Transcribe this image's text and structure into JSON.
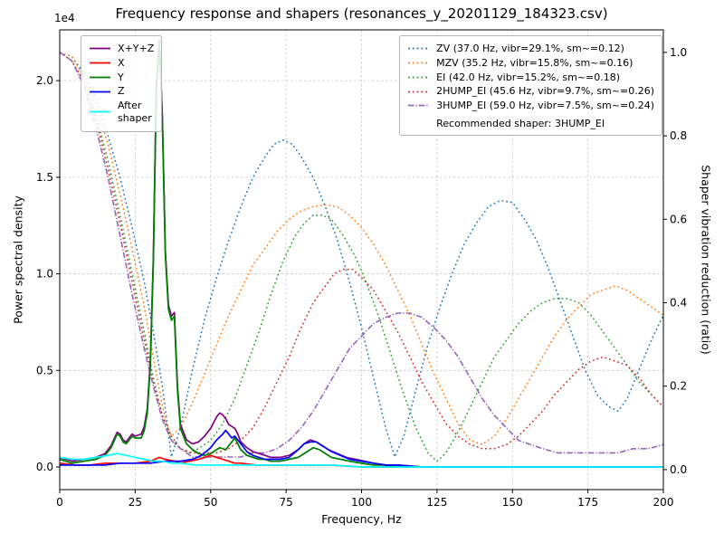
{
  "chart_data": {
    "type": "line",
    "title": "Frequency response and shapers (resonances_y_20201129_184323.csv)",
    "xlabel": "Frequency, Hz",
    "ylabel": "Power spectral density",
    "ylabel_right": "Shaper vibration reduction (ratio)",
    "offset_text": "1e4",
    "recommended_note": "Recommended shaper: 3HUMP_EI",
    "xlim": [
      0,
      200
    ],
    "ylim_left": [
      -0.117,
      2.263
    ],
    "ylim_right": [
      -0.048,
      1.054
    ],
    "x_ticks": [
      0,
      25,
      50,
      75,
      100,
      125,
      150,
      175,
      200
    ],
    "x_tick_labels": [
      "0",
      "25",
      "50",
      "75",
      "100",
      "125",
      "150",
      "175",
      "200"
    ],
    "yl_ticks": [
      0,
      0.5,
      1.0,
      1.5,
      2.0
    ],
    "yl_tick_labels": [
      "0.0",
      "0.5",
      "1.0",
      "1.5",
      "2.0"
    ],
    "yr_ticks": [
      0,
      0.2,
      0.4,
      0.6,
      0.8,
      1.0
    ],
    "yr_tick_labels": [
      "0.0",
      "0.2",
      "0.4",
      "0.6",
      "0.8",
      "1.0"
    ],
    "grid": true,
    "legend_left_position": "upper left",
    "legend_right_position": "upper right",
    "series": [
      {
        "id": "xyz",
        "name": "X+Y+Z",
        "label": "X+Y+Z",
        "axis": "left",
        "color": "#800080",
        "style": "solid",
        "width": 1.7,
        "x": [
          0,
          4,
          8,
          12,
          15,
          17,
          19,
          20,
          21,
          22,
          24,
          25,
          27,
          28,
          29,
          30,
          31,
          32,
          33,
          34,
          35,
          36,
          37,
          38,
          39,
          40,
          42,
          44,
          46,
          48,
          50,
          51,
          52,
          53,
          54,
          55,
          56,
          57,
          58,
          59,
          60,
          62,
          64,
          66,
          68,
          70,
          73,
          76,
          79,
          81,
          83,
          85,
          87,
          89,
          92,
          95,
          98,
          101,
          104,
          108,
          112,
          120,
          140,
          170,
          200
        ],
        "y": [
          0.05,
          0.03,
          0.04,
          0.05,
          0.07,
          0.11,
          0.18,
          0.17,
          0.14,
          0.13,
          0.17,
          0.16,
          0.17,
          0.21,
          0.3,
          0.55,
          1.08,
          1.97,
          2.21,
          1.82,
          1.12,
          0.84,
          0.78,
          0.8,
          0.42,
          0.22,
          0.14,
          0.12,
          0.13,
          0.16,
          0.2,
          0.23,
          0.26,
          0.28,
          0.27,
          0.25,
          0.22,
          0.21,
          0.2,
          0.17,
          0.13,
          0.1,
          0.08,
          0.07,
          0.06,
          0.05,
          0.05,
          0.06,
          0.09,
          0.12,
          0.14,
          0.13,
          0.11,
          0.09,
          0.07,
          0.05,
          0.04,
          0.03,
          0.02,
          0.01,
          0.01,
          0,
          0,
          0,
          0
        ]
      },
      {
        "id": "x",
        "name": "X",
        "label": "X",
        "axis": "left",
        "color": "#ff0000",
        "style": "solid",
        "width": 1.7,
        "x": [
          0,
          5,
          10,
          15,
          20,
          25,
          30,
          33,
          35,
          38,
          40,
          43,
          46,
          48,
          50,
          52,
          54,
          56,
          58,
          60,
          65,
          70,
          80,
          90,
          100,
          120,
          150,
          200
        ],
        "y": [
          0.02,
          0.01,
          0.01,
          0.02,
          0.02,
          0.02,
          0.03,
          0.05,
          0.04,
          0.03,
          0.02,
          0.03,
          0.04,
          0.05,
          0.06,
          0.05,
          0.04,
          0.03,
          0.02,
          0.02,
          0.01,
          0.01,
          0.01,
          0.01,
          0,
          0,
          0,
          0
        ]
      },
      {
        "id": "y",
        "name": "Y",
        "label": "Y",
        "axis": "left",
        "color": "#008000",
        "style": "solid",
        "width": 1.8,
        "x": [
          0,
          4,
          8,
          12,
          15,
          17,
          19,
          20,
          21,
          22,
          24,
          25,
          27,
          28,
          29,
          30,
          31,
          32,
          33,
          34,
          35,
          36,
          37,
          38,
          39,
          40,
          42,
          44,
          46,
          48,
          50,
          52,
          53,
          55,
          57,
          58,
          59,
          60,
          62,
          64,
          66,
          68,
          70,
          73,
          76,
          79,
          82,
          84,
          86,
          88,
          90,
          93,
          96,
          100,
          104,
          108,
          112,
          120,
          140,
          170,
          200
        ],
        "y": [
          0.04,
          0.02,
          0.03,
          0.04,
          0.06,
          0.1,
          0.17,
          0.16,
          0.13,
          0.12,
          0.16,
          0.15,
          0.15,
          0.19,
          0.28,
          0.52,
          1.05,
          1.95,
          2.2,
          1.8,
          1.1,
          0.82,
          0.76,
          0.78,
          0.4,
          0.2,
          0.12,
          0.09,
          0.07,
          0.06,
          0.07,
          0.09,
          0.1,
          0.09,
          0.13,
          0.15,
          0.12,
          0.09,
          0.06,
          0.05,
          0.04,
          0.04,
          0.03,
          0.03,
          0.04,
          0.05,
          0.08,
          0.1,
          0.09,
          0.07,
          0.05,
          0.04,
          0.03,
          0.02,
          0.01,
          0.01,
          0,
          0,
          0,
          0,
          0
        ]
      },
      {
        "id": "z",
        "name": "Z",
        "label": "Z",
        "axis": "left",
        "color": "#0000ff",
        "style": "solid",
        "width": 1.7,
        "x": [
          0,
          5,
          10,
          15,
          20,
          25,
          30,
          35,
          40,
          44,
          47,
          50,
          52,
          54,
          55,
          56,
          57,
          58,
          59,
          60,
          62,
          64,
          66,
          68,
          70,
          73,
          76,
          79,
          81,
          83,
          85,
          87,
          90,
          93,
          96,
          100,
          104,
          108,
          112,
          120,
          140,
          170,
          200
        ],
        "y": [
          0.01,
          0.01,
          0.01,
          0.01,
          0.02,
          0.02,
          0.02,
          0.03,
          0.03,
          0.04,
          0.06,
          0.1,
          0.14,
          0.17,
          0.19,
          0.17,
          0.15,
          0.16,
          0.14,
          0.12,
          0.08,
          0.06,
          0.05,
          0.04,
          0.04,
          0.04,
          0.05,
          0.09,
          0.12,
          0.13,
          0.13,
          0.11,
          0.08,
          0.06,
          0.04,
          0.03,
          0.02,
          0.01,
          0.01,
          0,
          0,
          0,
          0
        ]
      },
      {
        "id": "after-shaper",
        "name": "After shaper",
        "label": "After\nshaper",
        "axis": "left",
        "color": "#00ffff",
        "style": "solid",
        "width": 1.7,
        "x": [
          0,
          4,
          8,
          12,
          16,
          19,
          22,
          25,
          28,
          31,
          34,
          37,
          40,
          45,
          50,
          60,
          70,
          80,
          90,
          100,
          120,
          150,
          200
        ],
        "y": [
          0.05,
          0.04,
          0.04,
          0.05,
          0.06,
          0.07,
          0.06,
          0.05,
          0.04,
          0.03,
          0.03,
          0.02,
          0.02,
          0.01,
          0.01,
          0.01,
          0.01,
          0.01,
          0.01,
          0,
          0,
          0,
          0
        ]
      },
      {
        "id": "zv",
        "name": "ZV",
        "label": "ZV (37.0 Hz, vibr=29.1%, sm~=0.12)",
        "axis": "right",
        "color": "#1f77b4",
        "style": "dotted",
        "width": 1.5,
        "x": [
          0,
          4,
          8,
          12,
          16,
          20,
          24,
          28,
          31,
          34,
          37,
          40,
          44,
          48,
          52,
          56,
          60,
          64,
          68,
          71,
          74,
          77,
          80,
          84,
          88,
          92,
          96,
          100,
          104,
          108,
          111,
          114,
          118,
          122,
          126,
          130,
          134,
          138,
          142,
          146,
          150,
          154,
          158,
          162,
          166,
          170,
          174,
          178,
          182,
          185,
          188,
          192,
          196,
          200
        ],
        "y": [
          1,
          0.99,
          0.95,
          0.89,
          0.8,
          0.7,
          0.58,
          0.45,
          0.33,
          0.2,
          0.03,
          0.1,
          0.24,
          0.36,
          0.46,
          0.55,
          0.63,
          0.7,
          0.75,
          0.78,
          0.79,
          0.78,
          0.75,
          0.7,
          0.63,
          0.55,
          0.45,
          0.34,
          0.22,
          0.1,
          0.03,
          0.08,
          0.19,
          0.3,
          0.39,
          0.47,
          0.54,
          0.59,
          0.63,
          0.645,
          0.64,
          0.6,
          0.55,
          0.48,
          0.4,
          0.32,
          0.24,
          0.18,
          0.15,
          0.14,
          0.17,
          0.24,
          0.31,
          0.37
        ]
      },
      {
        "id": "mzv",
        "name": "MZV",
        "label": "MZV (35.2 Hz, vibr=15.8%, sm~=0.16)",
        "axis": "right",
        "color": "#ff7f0e",
        "style": "dotted",
        "width": 1.5,
        "x": [
          0,
          4,
          8,
          12,
          16,
          20,
          24,
          28,
          31,
          33,
          35,
          37,
          40,
          44,
          48,
          52,
          56,
          60,
          64,
          68,
          72,
          76,
          80,
          84,
          88,
          92,
          96,
          100,
          104,
          108,
          112,
          116,
          120,
          124,
          128,
          132,
          136,
          140,
          144,
          148,
          152,
          156,
          160,
          164,
          168,
          172,
          176,
          180,
          184,
          188,
          192,
          196,
          200
        ],
        "y": [
          1,
          0.99,
          0.94,
          0.87,
          0.78,
          0.66,
          0.53,
          0.39,
          0.27,
          0.19,
          0.12,
          0.08,
          0.1,
          0.16,
          0.23,
          0.3,
          0.37,
          0.43,
          0.49,
          0.53,
          0.57,
          0.6,
          0.62,
          0.63,
          0.635,
          0.63,
          0.61,
          0.58,
          0.54,
          0.49,
          0.43,
          0.37,
          0.3,
          0.23,
          0.17,
          0.11,
          0.07,
          0.06,
          0.08,
          0.12,
          0.17,
          0.22,
          0.27,
          0.32,
          0.36,
          0.39,
          0.42,
          0.43,
          0.44,
          0.43,
          0.41,
          0.39,
          0.37
        ]
      },
      {
        "id": "ei",
        "name": "EI",
        "label": "EI (42.0 Hz, vibr=15.2%, sm~=0.18)",
        "axis": "right",
        "color": "#2ca02c",
        "style": "dotted",
        "width": 1.5,
        "x": [
          0,
          4,
          8,
          12,
          16,
          20,
          24,
          28,
          31,
          34,
          37,
          40,
          43,
          46,
          50,
          54,
          58,
          62,
          66,
          70,
          74,
          78,
          81,
          84,
          87,
          90,
          94,
          98,
          102,
          106,
          110,
          114,
          118,
          122,
          125,
          128,
          132,
          136,
          140,
          144,
          148,
          152,
          156,
          160,
          164,
          168,
          172,
          176,
          180,
          184,
          188,
          192,
          196,
          200
        ],
        "y": [
          1,
          0.98,
          0.93,
          0.85,
          0.74,
          0.61,
          0.47,
          0.33,
          0.22,
          0.13,
          0.07,
          0.05,
          0.04,
          0.05,
          0.07,
          0.11,
          0.17,
          0.25,
          0.33,
          0.42,
          0.5,
          0.56,
          0.59,
          0.61,
          0.61,
          0.6,
          0.56,
          0.51,
          0.44,
          0.36,
          0.27,
          0.18,
          0.1,
          0.04,
          0.02,
          0.04,
          0.09,
          0.15,
          0.21,
          0.27,
          0.31,
          0.35,
          0.38,
          0.4,
          0.41,
          0.41,
          0.4,
          0.37,
          0.33,
          0.29,
          0.25,
          0.21,
          0.18,
          0.15
        ]
      },
      {
        "id": "2hump-ei",
        "name": "2HUMP_EI",
        "label": "2HUMP_EI (45.6 Hz, vibr=9.7%, sm~=0.26)",
        "axis": "right",
        "color": "#d62728",
        "style": "dotted",
        "width": 1.5,
        "x": [
          0,
          4,
          8,
          12,
          16,
          20,
          24,
          28,
          31,
          34,
          37,
          40,
          44,
          48,
          52,
          56,
          60,
          64,
          68,
          72,
          76,
          80,
          84,
          88,
          91,
          94,
          97,
          100,
          104,
          108,
          112,
          116,
          120,
          124,
          128,
          132,
          136,
          140,
          144,
          148,
          152,
          156,
          160,
          164,
          168,
          172,
          176,
          180,
          184,
          188,
          192,
          196,
          200
        ],
        "y": [
          1,
          0.98,
          0.93,
          0.84,
          0.72,
          0.59,
          0.45,
          0.31,
          0.21,
          0.13,
          0.08,
          0.05,
          0.04,
          0.04,
          0.04,
          0.05,
          0.07,
          0.1,
          0.15,
          0.21,
          0.27,
          0.34,
          0.4,
          0.44,
          0.47,
          0.48,
          0.48,
          0.46,
          0.43,
          0.38,
          0.33,
          0.27,
          0.21,
          0.16,
          0.11,
          0.08,
          0.06,
          0.05,
          0.05,
          0.06,
          0.08,
          0.11,
          0.14,
          0.18,
          0.21,
          0.24,
          0.26,
          0.27,
          0.26,
          0.25,
          0.22,
          0.18,
          0.15
        ]
      },
      {
        "id": "3hump-ei",
        "name": "3HUMP_EI",
        "label": "3HUMP_EI (59.0 Hz, vibr=7.5%, sm~=0.24)",
        "axis": "right",
        "color": "#9467bd",
        "style": "dashdot",
        "width": 1.6,
        "x": [
          0,
          4,
          8,
          12,
          16,
          20,
          24,
          28,
          31,
          34,
          37,
          40,
          44,
          48,
          52,
          56,
          60,
          64,
          68,
          72,
          76,
          80,
          84,
          88,
          92,
          96,
          100,
          104,
          108,
          112,
          116,
          120,
          124,
          128,
          132,
          136,
          140,
          144,
          148,
          152,
          156,
          160,
          165,
          170,
          175,
          180,
          185,
          190,
          195,
          200
        ],
        "y": [
          1,
          0.98,
          0.92,
          0.82,
          0.7,
          0.56,
          0.42,
          0.29,
          0.2,
          0.12,
          0.07,
          0.05,
          0.03,
          0.03,
          0.03,
          0.03,
          0.03,
          0.04,
          0.04,
          0.05,
          0.07,
          0.1,
          0.14,
          0.19,
          0.24,
          0.29,
          0.32,
          0.35,
          0.365,
          0.375,
          0.375,
          0.365,
          0.34,
          0.31,
          0.27,
          0.22,
          0.17,
          0.13,
          0.1,
          0.07,
          0.06,
          0.05,
          0.04,
          0.04,
          0.04,
          0.04,
          0.04,
          0.05,
          0.05,
          0.06
        ]
      }
    ]
  }
}
